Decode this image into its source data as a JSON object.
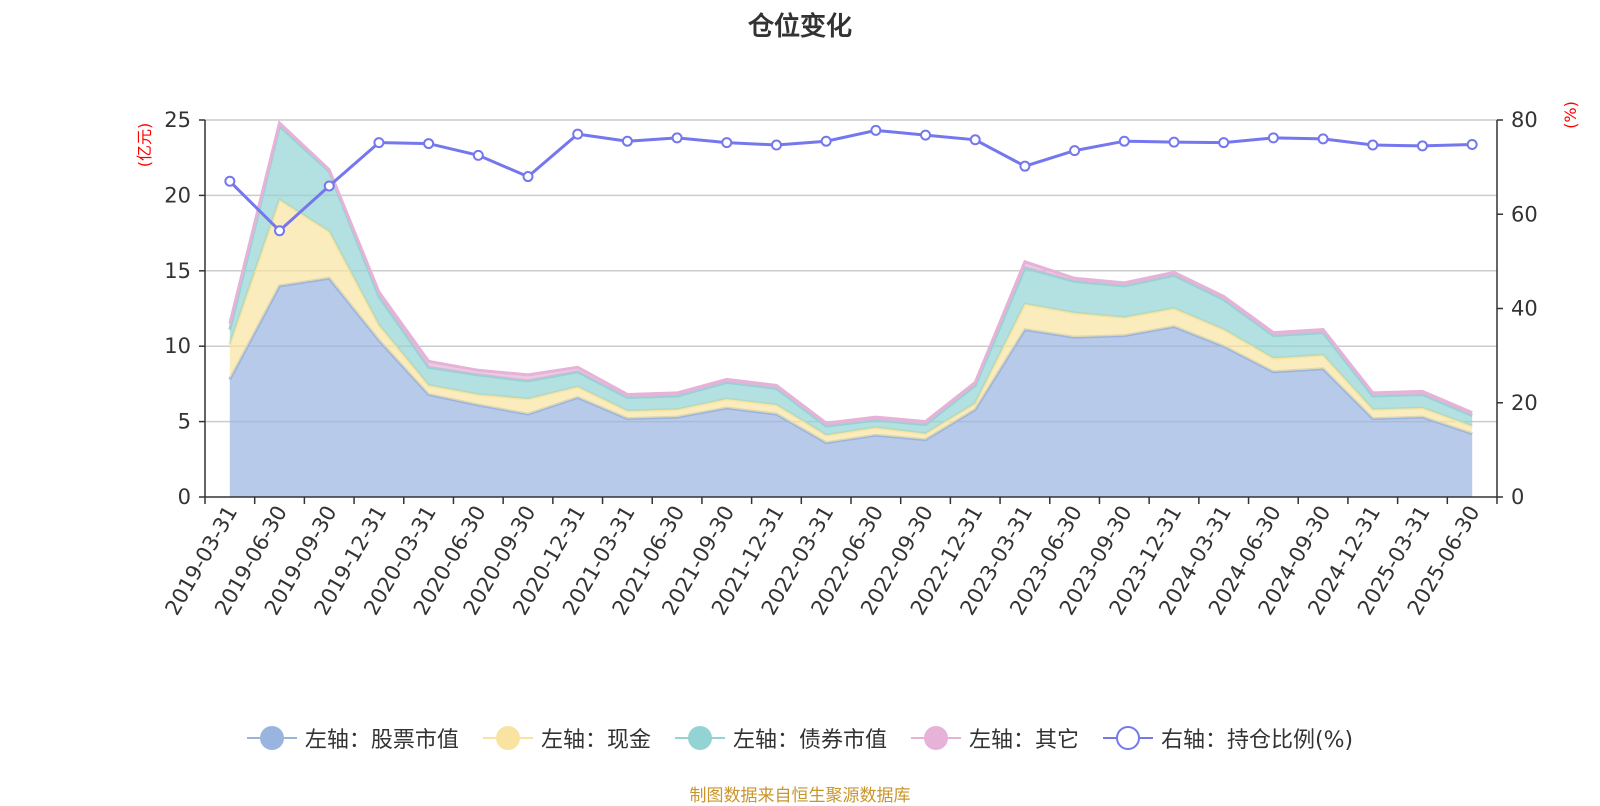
{
  "title": "仓位变化",
  "source": "制图数据来自恒生聚源数据库",
  "colors": {
    "stock": "#9ab4e0",
    "cash": "#f8e4a0",
    "bond": "#93d3d3",
    "other": "#e6b2d8",
    "ratio": "#7477ee",
    "axis_unit": "#ff0000"
  },
  "legend": [
    {
      "key": "stock",
      "label": "左轴：股票市值",
      "icon": "filled-circle"
    },
    {
      "key": "cash",
      "label": "左轴：现金",
      "icon": "filled-circle"
    },
    {
      "key": "bond",
      "label": "左轴：债券市值",
      "icon": "filled-circle"
    },
    {
      "key": "other",
      "label": "左轴：其它",
      "icon": "filled-circle"
    },
    {
      "key": "ratio",
      "label": "右轴：持仓比例(%)",
      "icon": "hollow-circle"
    }
  ],
  "chart_data": {
    "type": "area",
    "title": "仓位变化",
    "categories": [
      "2019-03-31",
      "2019-06-30",
      "2019-09-30",
      "2019-12-31",
      "2020-03-31",
      "2020-06-30",
      "2020-09-30",
      "2020-12-31",
      "2021-03-31",
      "2021-06-30",
      "2021-09-30",
      "2021-12-31",
      "2022-03-31",
      "2022-06-30",
      "2022-09-30",
      "2022-12-31",
      "2023-03-31",
      "2023-06-30",
      "2023-09-30",
      "2023-12-31",
      "2024-03-31",
      "2024-06-30",
      "2024-09-30",
      "2024-12-31",
      "2025-03-31",
      "2025-06-30"
    ],
    "stacked": true,
    "y_left": {
      "label": "(亿元)",
      "ylim": [
        0,
        25
      ],
      "ticks": [
        0,
        5,
        10,
        15,
        20,
        25
      ]
    },
    "y_right": {
      "label": "(%)",
      "ylim": [
        0,
        80
      ],
      "ticks": [
        0,
        20,
        40,
        60,
        80
      ]
    },
    "grid": true,
    "legend_position": "bottom",
    "series": [
      {
        "name": "左轴：股票市值",
        "axis": "left",
        "type": "area",
        "values": [
          7.8,
          14.0,
          14.5,
          10.4,
          6.8,
          6.1,
          5.5,
          6.6,
          5.2,
          5.3,
          5.9,
          5.5,
          3.6,
          4.1,
          3.8,
          5.8,
          11.1,
          10.6,
          10.7,
          11.3,
          10.0,
          8.3,
          8.5,
          5.2,
          5.3,
          4.2
        ]
      },
      {
        "name": "左轴：现金",
        "axis": "left",
        "type": "area",
        "values": [
          2.3,
          5.7,
          3.1,
          1.0,
          0.6,
          0.7,
          1.0,
          0.7,
          0.5,
          0.5,
          0.6,
          0.6,
          0.5,
          0.5,
          0.4,
          0.4,
          1.7,
          1.6,
          1.2,
          1.2,
          1.1,
          0.9,
          0.9,
          0.6,
          0.6,
          0.5
        ]
      },
      {
        "name": "左轴：债券市值",
        "axis": "left",
        "type": "area",
        "values": [
          1.0,
          4.9,
          4.0,
          1.9,
          1.2,
          1.3,
          1.2,
          1.0,
          0.9,
          0.9,
          1.1,
          1.1,
          0.6,
          0.5,
          0.6,
          1.2,
          2.4,
          2.1,
          2.1,
          2.2,
          2.0,
          1.5,
          1.5,
          0.9,
          0.9,
          0.7
        ]
      },
      {
        "name": "左轴：其它",
        "axis": "left",
        "type": "area",
        "values": [
          0.4,
          0.2,
          0.1,
          0.3,
          0.4,
          0.3,
          0.4,
          0.3,
          0.2,
          0.2,
          0.2,
          0.2,
          0.2,
          0.2,
          0.2,
          0.2,
          0.4,
          0.2,
          0.2,
          0.2,
          0.2,
          0.2,
          0.2,
          0.2,
          0.2,
          0.2
        ]
      },
      {
        "name": "右轴：持仓比例(%)",
        "axis": "right",
        "type": "line",
        "values": [
          67.0,
          56.5,
          66.0,
          75.2,
          75.0,
          72.5,
          68.0,
          77.0,
          75.5,
          76.2,
          75.2,
          74.7,
          75.5,
          77.8,
          76.8,
          75.8,
          70.2,
          73.5,
          75.5,
          75.3,
          75.2,
          76.2,
          76.0,
          74.7,
          74.5,
          74.8
        ]
      }
    ]
  }
}
